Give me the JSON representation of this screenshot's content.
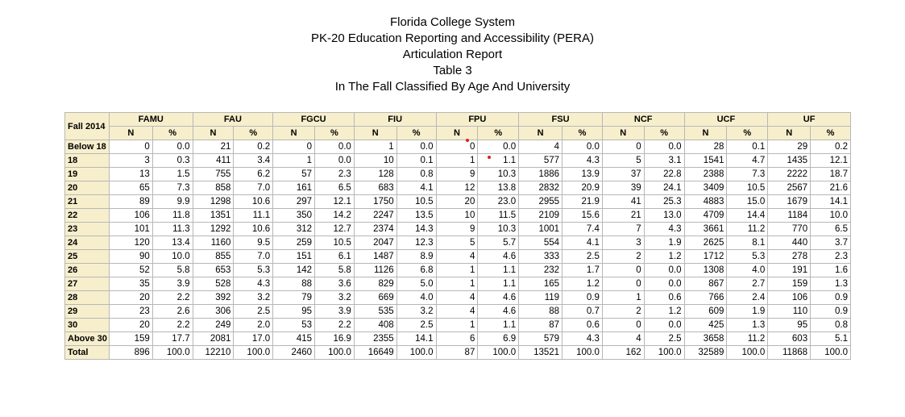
{
  "titles": [
    "Florida College System",
    "PK-20 Education Reporting and Accessibility (PERA)",
    "Articulation Report",
    "Table 3",
    "In The Fall Classified By Age And University"
  ],
  "table": {
    "corner": "Fall 2014",
    "universities": [
      "FAMU",
      "FAU",
      "FGCU",
      "FIU",
      "FPU",
      "FSU",
      "NCF",
      "UCF",
      "UF"
    ],
    "subheaders": [
      "N",
      "%"
    ],
    "rows": [
      {
        "label": "Below 18",
        "values": [
          "0",
          "0.0",
          "21",
          "0.2",
          "0",
          "0.0",
          "1",
          "0.0",
          "0",
          "0.0",
          "4",
          "0.0",
          "0",
          "0.0",
          "28",
          "0.1",
          "29",
          "0.2"
        ]
      },
      {
        "label": "18",
        "values": [
          "3",
          "0.3",
          "411",
          "3.4",
          "1",
          "0.0",
          "10",
          "0.1",
          "1",
          "1.1",
          "577",
          "4.3",
          "5",
          "3.1",
          "1541",
          "4.7",
          "1435",
          "12.1"
        ]
      },
      {
        "label": "19",
        "values": [
          "13",
          "1.5",
          "755",
          "6.2",
          "57",
          "2.3",
          "128",
          "0.8",
          "9",
          "10.3",
          "1886",
          "13.9",
          "37",
          "22.8",
          "2388",
          "7.3",
          "2222",
          "18.7"
        ]
      },
      {
        "label": "20",
        "values": [
          "65",
          "7.3",
          "858",
          "7.0",
          "161",
          "6.5",
          "683",
          "4.1",
          "12",
          "13.8",
          "2832",
          "20.9",
          "39",
          "24.1",
          "3409",
          "10.5",
          "2567",
          "21.6"
        ]
      },
      {
        "label": "21",
        "values": [
          "89",
          "9.9",
          "1298",
          "10.6",
          "297",
          "12.1",
          "1750",
          "10.5",
          "20",
          "23.0",
          "2955",
          "21.9",
          "41",
          "25.3",
          "4883",
          "15.0",
          "1679",
          "14.1"
        ]
      },
      {
        "label": "22",
        "values": [
          "106",
          "11.8",
          "1351",
          "11.1",
          "350",
          "14.2",
          "2247",
          "13.5",
          "10",
          "11.5",
          "2109",
          "15.6",
          "21",
          "13.0",
          "4709",
          "14.4",
          "1184",
          "10.0"
        ]
      },
      {
        "label": "23",
        "values": [
          "101",
          "11.3",
          "1292",
          "10.6",
          "312",
          "12.7",
          "2374",
          "14.3",
          "9",
          "10.3",
          "1001",
          "7.4",
          "7",
          "4.3",
          "3661",
          "11.2",
          "770",
          "6.5"
        ]
      },
      {
        "label": "24",
        "values": [
          "120",
          "13.4",
          "1160",
          "9.5",
          "259",
          "10.5",
          "2047",
          "12.3",
          "5",
          "5.7",
          "554",
          "4.1",
          "3",
          "1.9",
          "2625",
          "8.1",
          "440",
          "3.7"
        ]
      },
      {
        "label": "25",
        "values": [
          "90",
          "10.0",
          "855",
          "7.0",
          "151",
          "6.1",
          "1487",
          "8.9",
          "4",
          "4.6",
          "333",
          "2.5",
          "2",
          "1.2",
          "1712",
          "5.3",
          "278",
          "2.3"
        ]
      },
      {
        "label": "26",
        "values": [
          "52",
          "5.8",
          "653",
          "5.3",
          "142",
          "5.8",
          "1126",
          "6.8",
          "1",
          "1.1",
          "232",
          "1.7",
          "0",
          "0.0",
          "1308",
          "4.0",
          "191",
          "1.6"
        ]
      },
      {
        "label": "27",
        "values": [
          "35",
          "3.9",
          "528",
          "4.3",
          "88",
          "3.6",
          "829",
          "5.0",
          "1",
          "1.1",
          "165",
          "1.2",
          "0",
          "0.0",
          "867",
          "2.7",
          "159",
          "1.3"
        ]
      },
      {
        "label": "28",
        "values": [
          "20",
          "2.2",
          "392",
          "3.2",
          "79",
          "3.2",
          "669",
          "4.0",
          "4",
          "4.6",
          "119",
          "0.9",
          "1",
          "0.6",
          "766",
          "2.4",
          "106",
          "0.9"
        ]
      },
      {
        "label": "29",
        "values": [
          "23",
          "2.6",
          "306",
          "2.5",
          "95",
          "3.9",
          "535",
          "3.2",
          "4",
          "4.6",
          "88",
          "0.7",
          "2",
          "1.2",
          "609",
          "1.9",
          "110",
          "0.9"
        ]
      },
      {
        "label": "30",
        "values": [
          "20",
          "2.2",
          "249",
          "2.0",
          "53",
          "2.2",
          "408",
          "2.5",
          "1",
          "1.1",
          "87",
          "0.6",
          "0",
          "0.0",
          "425",
          "1.3",
          "95",
          "0.8"
        ]
      },
      {
        "label": "Above 30",
        "values": [
          "159",
          "17.7",
          "2081",
          "17.0",
          "415",
          "16.9",
          "2355",
          "14.1",
          "6",
          "6.9",
          "579",
          "4.3",
          "4",
          "2.5",
          "3658",
          "11.2",
          "603",
          "5.1"
        ]
      },
      {
        "label": "Total",
        "values": [
          "896",
          "100.0",
          "12210",
          "100.0",
          "2460",
          "100.0",
          "16649",
          "100.0",
          "87",
          "100.0",
          "13521",
          "100.0",
          "162",
          "100.0",
          "32589",
          "100.0",
          "11868",
          "100.0"
        ]
      }
    ]
  },
  "colors": {
    "header_fill": "#f7efcc",
    "grid_line": "#b7b7b7",
    "marker": "#e0201c"
  }
}
